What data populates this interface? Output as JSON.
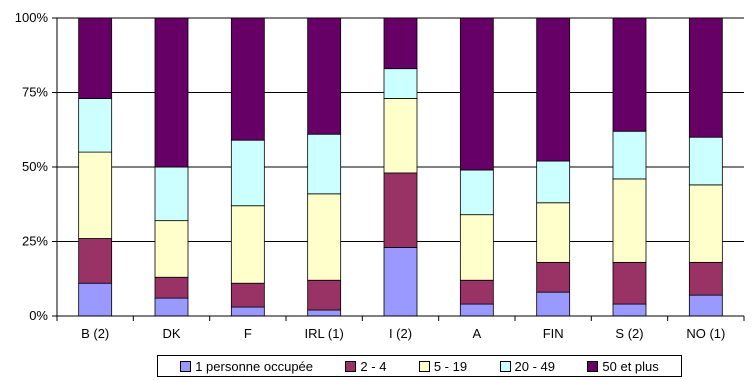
{
  "chart_data": {
    "type": "bar",
    "stacked": true,
    "percent": true,
    "categories": [
      "B (2)",
      "DK",
      "F",
      "IRL (1)",
      "I (2)",
      "A",
      "FIN",
      "S (2)",
      "NO (1)"
    ],
    "ylim": [
      0,
      100
    ],
    "yticks": [
      "0%",
      "25%",
      "50%",
      "75%",
      "100%"
    ],
    "grid": true,
    "legend_position": "bottom",
    "series": [
      {
        "name": "1 personne occupée",
        "color": "#9999ff",
        "values": [
          11,
          6,
          3,
          2,
          23,
          4,
          8,
          4,
          7
        ]
      },
      {
        "name": "2 - 4",
        "color": "#993366",
        "values": [
          15,
          7,
          8,
          10,
          25,
          8,
          10,
          14,
          11
        ]
      },
      {
        "name": "5 - 19",
        "color": "#ffffcc",
        "values": [
          29,
          19,
          26,
          29,
          25,
          22,
          20,
          28,
          26
        ]
      },
      {
        "name": "20 - 49",
        "color": "#ccffff",
        "values": [
          18,
          18,
          22,
          20,
          10,
          15,
          14,
          16,
          16
        ]
      },
      {
        "name": "50 et plus",
        "color": "#660066",
        "values": [
          27,
          50,
          41,
          39,
          17,
          51,
          48,
          38,
          40
        ]
      }
    ]
  }
}
